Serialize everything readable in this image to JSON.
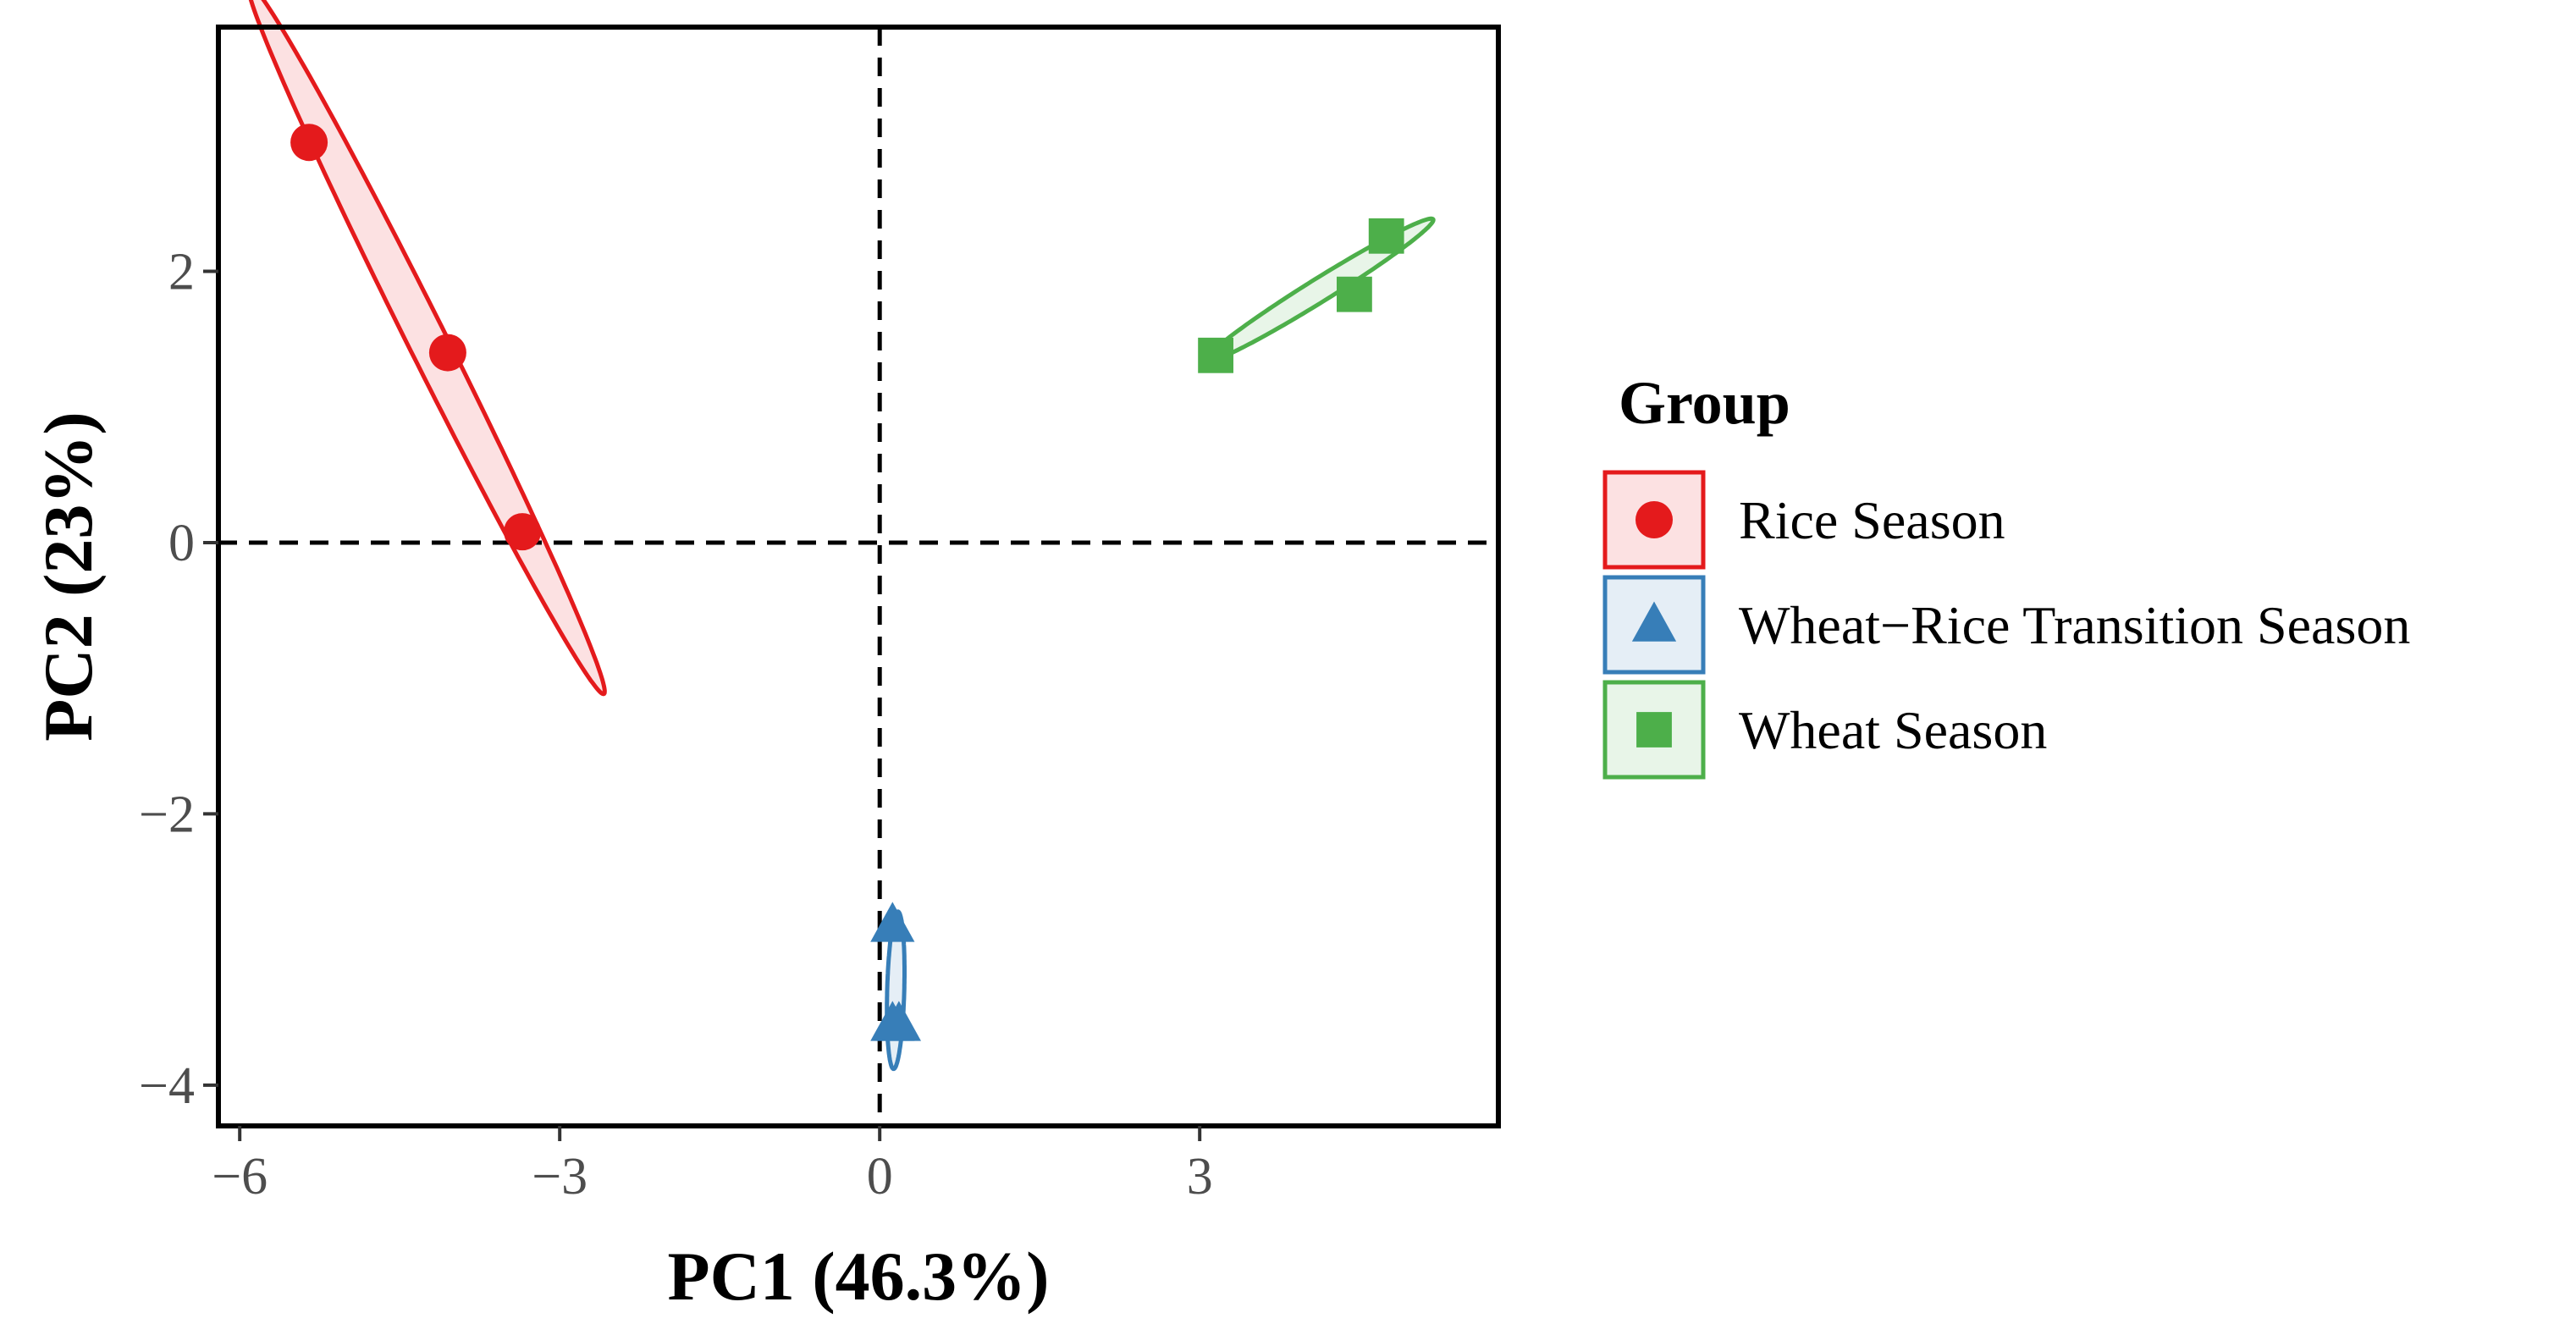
{
  "chart_data": {
    "type": "scatter",
    "xlabel": "PC1 (46.3%)",
    "ylabel": "PC2 (23%)",
    "xlim": [
      -6.2,
      5.8
    ],
    "ylim": [
      -4.3,
      3.8
    ],
    "xticks": [
      -6,
      -3,
      0,
      3
    ],
    "yticks": [
      -4,
      -2,
      0,
      2
    ],
    "xtick_labels": [
      "−6",
      "−3",
      "0",
      "3"
    ],
    "ytick_labels": [
      "−4",
      "−2",
      "0",
      "2"
    ],
    "reference_lines": {
      "x": 0,
      "y": 0,
      "style": "dashed"
    },
    "grid": false,
    "legend": {
      "title": "Group",
      "position": "right"
    },
    "series": [
      {
        "name": "Rice Season",
        "marker": "circle",
        "color": "#E41A1C",
        "points": [
          [
            -5.35,
            2.95
          ],
          [
            -4.05,
            1.4
          ],
          [
            -3.35,
            0.08
          ]
        ],
        "ellipse": {
          "center": [
            -4.25,
            1.5
          ],
          "semi_major": 3.1,
          "semi_minor": 0.17,
          "angle_deg": -57.5
        }
      },
      {
        "name": "Wheat−Rice Transition Season",
        "marker": "triangle",
        "color": "#377EB8",
        "points": [
          [
            0.12,
            -2.82
          ],
          [
            0.12,
            -3.55
          ],
          [
            0.18,
            -3.55
          ]
        ],
        "ellipse": {
          "center": [
            0.15,
            -3.3
          ],
          "semi_major": 0.58,
          "semi_minor": 0.08,
          "angle_deg": 88
        }
      },
      {
        "name": "Wheat Season",
        "marker": "square",
        "color": "#4DAF4A",
        "points": [
          [
            3.15,
            1.38
          ],
          [
            4.45,
            1.83
          ],
          [
            4.75,
            2.26
          ]
        ],
        "ellipse": {
          "center": [
            4.12,
            1.86
          ],
          "semi_major": 1.19,
          "semi_minor": 0.09,
          "angle_deg": 26
        }
      }
    ]
  }
}
